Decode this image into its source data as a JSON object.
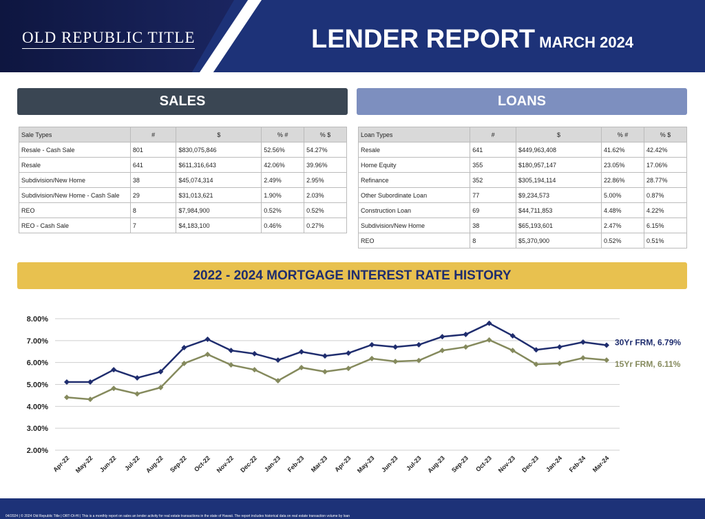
{
  "header": {
    "logo": "OLD REPUBLIC TITLE",
    "title": "LENDER REPORT",
    "subtitle": "MARCH 2024"
  },
  "sales": {
    "title": "SALES",
    "columns": [
      "Sale Types",
      "#",
      "$",
      "% #",
      "% $"
    ],
    "rows": [
      [
        "Resale - Cash Sale",
        "801",
        "$830,075,846",
        "52.56%",
        "54.27%"
      ],
      [
        "Resale",
        "641",
        "$611,316,643",
        "42.06%",
        "39.96%"
      ],
      [
        "Subdivision/New Home",
        "38",
        "$45,074,314",
        "2.49%",
        "2.95%"
      ],
      [
        "Subdivision/New Home - Cash Sale",
        "29",
        "$31,013,621",
        "1.90%",
        "2.03%"
      ],
      [
        "REO",
        "8",
        "$7,984,900",
        "0.52%",
        "0.52%"
      ],
      [
        "REO - Cash Sale",
        "7",
        "$4,183,100",
        "0.46%",
        "0.27%"
      ]
    ]
  },
  "loans": {
    "title": "LOANS",
    "columns": [
      "Loan Types",
      "#",
      "$",
      "% #",
      "% $"
    ],
    "rows": [
      [
        "Resale",
        "641",
        "$449,963,408",
        "41.62%",
        "42.42%"
      ],
      [
        "Home Equity",
        "355",
        "$180,957,147",
        "23.05%",
        "17.06%"
      ],
      [
        "Refinance",
        "352",
        "$305,194,114",
        "22.86%",
        "28.77%"
      ],
      [
        "Other Subordinate Loan",
        "77",
        "$9,234,573",
        "5.00%",
        "0.87%"
      ],
      [
        "Construction Loan",
        "69",
        "$44,711,853",
        "4.48%",
        "4.22%"
      ],
      [
        "Subdivision/New Home",
        "38",
        "$65,193,601",
        "2.47%",
        "6.15%"
      ],
      [
        "REO",
        "8",
        "$5,370,900",
        "0.52%",
        "0.51%"
      ]
    ]
  },
  "chart_data": {
    "type": "line",
    "title": "2022 - 2024 MORTGAGE INTEREST RATE HISTORY",
    "categories": [
      "Apr-22",
      "May-22",
      "Jun-22",
      "Jul-22",
      "Aug-22",
      "Sep-22",
      "Oct-22",
      "Nov-22",
      "Dec-22",
      "Jan-23",
      "Feb-23",
      "Mar-23",
      "Apr-23",
      "May-23",
      "Jun-23",
      "Jul-23",
      "Aug-23",
      "Sep-23",
      "Oct-23",
      "Nov-23",
      "Dec-23",
      "Jan-24",
      "Feb-24",
      "Mar-24"
    ],
    "series": [
      {
        "name": "30Yr FRM, 6.79%",
        "color": "#1f2d6e",
        "values": [
          5.11,
          5.11,
          5.67,
          5.3,
          5.58,
          6.68,
          7.06,
          6.55,
          6.4,
          6.11,
          6.49,
          6.3,
          6.43,
          6.81,
          6.71,
          6.81,
          7.18,
          7.28,
          7.79,
          7.22,
          6.58,
          6.71,
          6.93,
          6.79
        ]
      },
      {
        "name": "15Yr FRM, 6.11%",
        "color": "#858a5d",
        "values": [
          4.41,
          4.32,
          4.82,
          4.57,
          4.86,
          5.96,
          6.37,
          5.89,
          5.67,
          5.17,
          5.77,
          5.58,
          5.73,
          6.18,
          6.05,
          6.09,
          6.55,
          6.71,
          7.03,
          6.55,
          5.92,
          5.96,
          6.21,
          6.11
        ]
      }
    ],
    "ylim": [
      2,
      8
    ],
    "yticks": [
      {
        "value": 2,
        "label": "2.00%"
      },
      {
        "value": 3,
        "label": "3.00%"
      },
      {
        "value": 4,
        "label": "4.00%"
      },
      {
        "value": 5,
        "label": "5.00%"
      },
      {
        "value": 6,
        "label": "6.00%"
      },
      {
        "value": 7,
        "label": "7.00%"
      },
      {
        "value": 8,
        "label": "8.00%"
      }
    ],
    "grid": true
  },
  "footer": "04/2024 | © 2024 Old Republic Title | ORT-OI-HI | This is a monthly report on sales an lender activity for real estate transactions in the state of Hawaii. The report includes historical data on real estate transaction volume by loan"
}
